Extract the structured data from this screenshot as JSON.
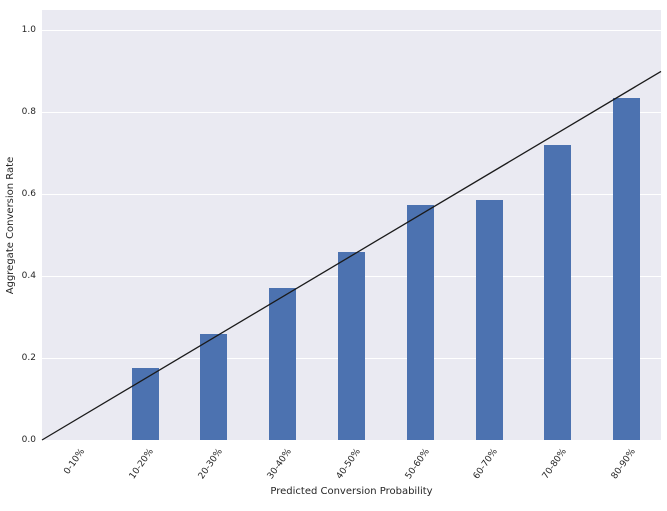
{
  "chart_data": {
    "type": "bar",
    "title": "",
    "categories": [
      "0-10%",
      "10-20%",
      "20-30%",
      "30-40%",
      "40-50%",
      "50-60%",
      "60-70%",
      "70-80%",
      "80-90%"
    ],
    "values": [
      0,
      0.175,
      0.26,
      0.37,
      0.46,
      0.575,
      0.585,
      0.72,
      0.835
    ],
    "xlabel": "Predicted Conversion Probability",
    "ylabel": "Aggregate Conversion Rate",
    "ylim": [
      0,
      1.05
    ],
    "yticks": [
      0.0,
      0.2,
      0.4,
      0.6,
      0.8,
      1.0
    ],
    "grid": true,
    "legend": "none",
    "bar_color": "#4c72b0",
    "plot_bg": "#eaeaf2",
    "gridline_color": "#ffffff",
    "reference_line": {
      "name": "perfect-calibration-diagonal",
      "y_at_left": 0.0,
      "y_at_right": 0.9,
      "color": "#1a1a1a"
    }
  }
}
